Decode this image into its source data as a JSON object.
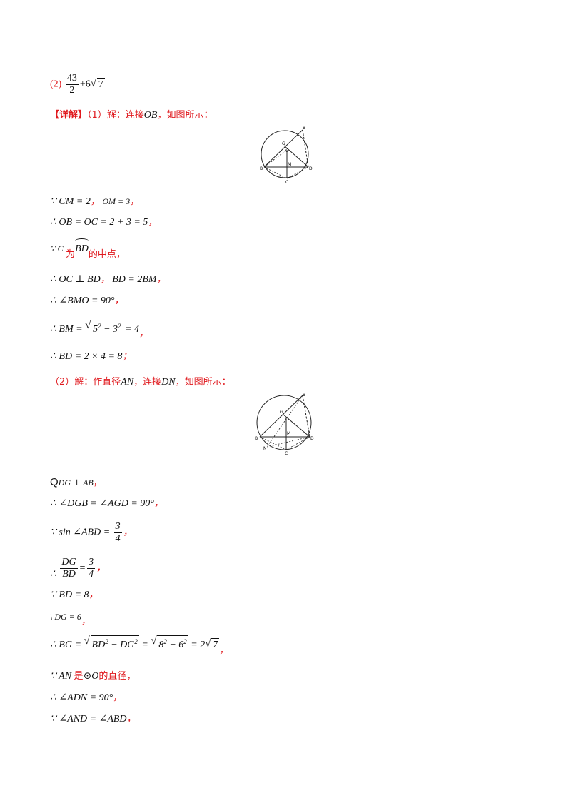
{
  "answer2": {
    "label": "(2)",
    "num": "43",
    "den": "2",
    "rest": "+6",
    "rad": "7"
  },
  "detail": {
    "tag": "【详解】",
    "part1_intro": "（1）解：连接",
    "part1_var": "OB",
    "part1_tail": "，如图所示："
  },
  "l1": {
    "a": "∵ CM = 2",
    "sep": "，",
    "b": "OM = 3",
    "end": "，"
  },
  "l2": {
    "text": "∴ OB = OC = 2 + 3 = 5",
    "end": "，"
  },
  "l3": {
    "a": "∵ C",
    "b": "为",
    "arc": "BD",
    "c": "的中点，"
  },
  "l4": {
    "a": "∴ OC ⊥ BD",
    "sep": "，",
    "b": "BD = 2BM",
    "end": "，"
  },
  "l5": {
    "text": "∴ ∠BMO = 90°",
    "end": "，"
  },
  "l6": {
    "a": "∴ BM =",
    "rad_base1": "5",
    "rad_mid": " − ",
    "rad_base2": "3",
    "exp": "2",
    "b": " = 4",
    "end": "，"
  },
  "l7": {
    "text": "∴ BD = 2 × 4 = 8",
    "end": "；"
  },
  "part2": {
    "intro": "（2）解：作直径",
    "var1": "AN",
    "mid": "，连接",
    "var2": "DN",
    "tail": "，如图所示："
  },
  "m1": {
    "a": "Q",
    "b": "DG ⊥ AB",
    "end": "，"
  },
  "m2": {
    "text": "∴ ∠DGB = ∠AGD = 90°",
    "end": "，"
  },
  "m3": {
    "a": "∵ sin ∠ABD =",
    "num": "3",
    "den": "4",
    "end": "，"
  },
  "m4": {
    "a": "∴",
    "num1": "DG",
    "den1": "BD",
    "eq": "=",
    "num2": "3",
    "den2": "4",
    "end": "，"
  },
  "m5": {
    "text": "∵ BD = 8",
    "end": "，"
  },
  "m6": {
    "text": "\\ DG = 6",
    "end": "，"
  },
  "m7": {
    "a": "∴ BG =",
    "r1": "BD",
    "r1b": " − DG",
    "exp": "2",
    "eq1": " =",
    "r2a": "8",
    "r2b": " − 6",
    "eq2": " = 2",
    "r3": "7",
    "end": "，"
  },
  "m8": {
    "a": "∵ AN",
    "b": "是",
    "c": "⊙O",
    "d": "的直径，"
  },
  "m9": {
    "text": "∴ ∠ADN = 90°",
    "end": "，"
  },
  "m10": {
    "text": "∵ ∠AND = ∠ABD",
    "end": "，"
  },
  "fig1": {
    "A": "A",
    "G": "G",
    "O": "O",
    "M": "M",
    "B": "B",
    "D": "D",
    "C": "C"
  },
  "fig2": {
    "A": "A",
    "G": "G",
    "O": "O",
    "M": "M",
    "B": "B",
    "D": "D",
    "C": "C",
    "N": "N"
  }
}
